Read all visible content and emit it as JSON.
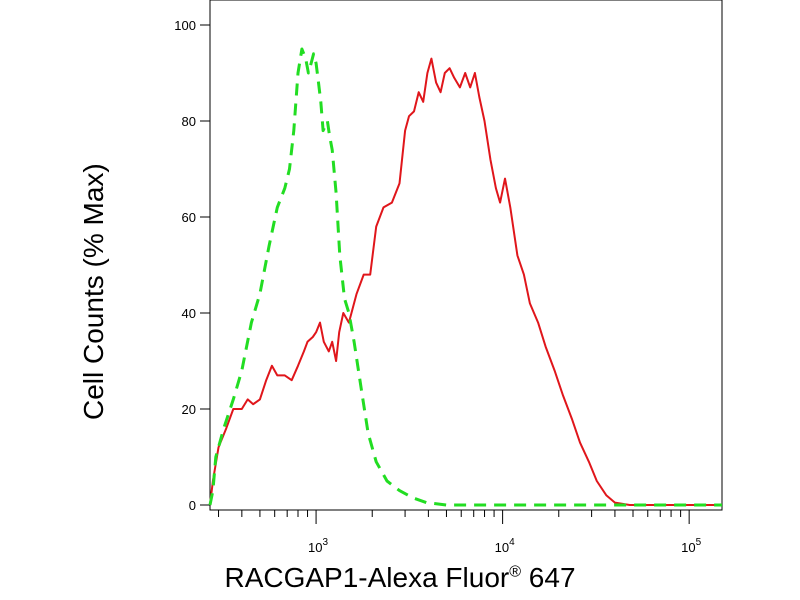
{
  "chart_data": {
    "type": "line",
    "title": "",
    "xlabel": {
      "main": "RACGAP1-Alexa Fluor",
      "mark": "®",
      "suffix": " 647"
    },
    "ylabel": "Cell Counts (% Max)",
    "x_scale": "log",
    "xlim": [
      270,
      150000
    ],
    "ylim": [
      0,
      100
    ],
    "y_ticks": [
      0,
      20,
      40,
      60,
      80,
      100
    ],
    "y_tick_labels": [
      "0",
      "20",
      "40",
      "60",
      "80",
      "100"
    ],
    "x_major_ticks": [
      1000,
      10000,
      100000
    ],
    "x_tick_labels": [
      {
        "base": "10",
        "exp": "3"
      },
      {
        "base": "10",
        "exp": "4"
      },
      {
        "base": "10",
        "exp": "5"
      }
    ],
    "x_minor_ticks": [
      300,
      400,
      500,
      600,
      700,
      800,
      900,
      2000,
      3000,
      4000,
      5000,
      6000,
      7000,
      8000,
      9000,
      20000,
      30000,
      40000,
      50000,
      60000,
      70000,
      80000,
      90000
    ],
    "grid": false,
    "legend": "none",
    "series": [
      {
        "color": "#e0161b",
        "dash": "solid",
        "points": [
          [
            270,
            0
          ],
          [
            280,
            5
          ],
          [
            300,
            12
          ],
          [
            330,
            16
          ],
          [
            360,
            20
          ],
          [
            400,
            20
          ],
          [
            430,
            22
          ],
          [
            460,
            21
          ],
          [
            500,
            22
          ],
          [
            540,
            26
          ],
          [
            580,
            29
          ],
          [
            620,
            27
          ],
          [
            680,
            27
          ],
          [
            740,
            26
          ],
          [
            800,
            29
          ],
          [
            860,
            32
          ],
          [
            900,
            34
          ],
          [
            960,
            35
          ],
          [
            1000,
            36
          ],
          [
            1050,
            38
          ],
          [
            1100,
            34
          ],
          [
            1170,
            32
          ],
          [
            1220,
            34
          ],
          [
            1280,
            30
          ],
          [
            1330,
            36
          ],
          [
            1400,
            40
          ],
          [
            1500,
            38
          ],
          [
            1650,
            44
          ],
          [
            1800,
            48
          ],
          [
            1950,
            48
          ],
          [
            2100,
            58
          ],
          [
            2300,
            62
          ],
          [
            2550,
            63
          ],
          [
            2800,
            67
          ],
          [
            3000,
            78
          ],
          [
            3150,
            81
          ],
          [
            3350,
            82
          ],
          [
            3550,
            86
          ],
          [
            3750,
            84
          ],
          [
            3950,
            90
          ],
          [
            4150,
            93
          ],
          [
            4400,
            88
          ],
          [
            4650,
            86
          ],
          [
            4900,
            90
          ],
          [
            5200,
            91
          ],
          [
            5500,
            89
          ],
          [
            5900,
            87
          ],
          [
            6300,
            90
          ],
          [
            6700,
            87
          ],
          [
            7100,
            90
          ],
          [
            7500,
            85
          ],
          [
            8000,
            80
          ],
          [
            8600,
            72
          ],
          [
            9200,
            66
          ],
          [
            9700,
            63
          ],
          [
            10300,
            68
          ],
          [
            11000,
            62
          ],
          [
            12000,
            52
          ],
          [
            13000,
            48
          ],
          [
            14000,
            42
          ],
          [
            15500,
            38
          ],
          [
            17000,
            33
          ],
          [
            19000,
            28
          ],
          [
            21000,
            23
          ],
          [
            23500,
            18
          ],
          [
            26000,
            13
          ],
          [
            29000,
            9
          ],
          [
            32000,
            5
          ],
          [
            36000,
            2
          ],
          [
            40000,
            0.5
          ],
          [
            48000,
            0
          ],
          [
            150000,
            0
          ]
        ]
      },
      {
        "color": "#22dd22",
        "dash": "dashed",
        "points": [
          [
            270,
            0
          ],
          [
            280,
            3
          ],
          [
            290,
            10
          ],
          [
            320,
            16
          ],
          [
            360,
            22
          ],
          [
            400,
            28
          ],
          [
            450,
            38
          ],
          [
            500,
            44
          ],
          [
            560,
            54
          ],
          [
            620,
            62
          ],
          [
            680,
            66
          ],
          [
            720,
            70
          ],
          [
            760,
            78
          ],
          [
            800,
            90
          ],
          [
            840,
            95
          ],
          [
            880,
            93
          ],
          [
            910,
            90
          ],
          [
            940,
            92
          ],
          [
            970,
            94
          ],
          [
            1000,
            92
          ],
          [
            1030,
            88
          ],
          [
            1060,
            84
          ],
          [
            1090,
            78
          ],
          [
            1120,
            79
          ],
          [
            1150,
            80
          ],
          [
            1180,
            77
          ],
          [
            1220,
            74
          ],
          [
            1280,
            65
          ],
          [
            1340,
            52
          ],
          [
            1420,
            43
          ],
          [
            1500,
            40
          ],
          [
            1600,
            34
          ],
          [
            1750,
            24
          ],
          [
            1900,
            15
          ],
          [
            2100,
            9
          ],
          [
            2400,
            5
          ],
          [
            2800,
            3
          ],
          [
            3300,
            1.5
          ],
          [
            3900,
            0.5
          ],
          [
            5000,
            0
          ],
          [
            150000,
            0
          ]
        ]
      }
    ]
  }
}
